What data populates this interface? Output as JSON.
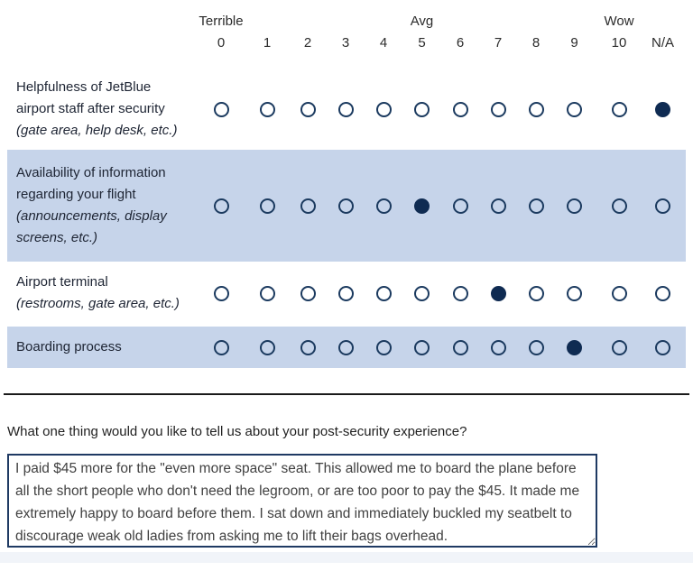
{
  "colors": {
    "accent": "#1b3a5f",
    "radio_fill": "#0f2b52",
    "row_highlight": "#c6d4ea",
    "text": "#1d2433",
    "divider": "#1a1a1a",
    "textarea_border": "#1f3a63",
    "textarea_text": "#414141",
    "next_section": "#f1f4f9"
  },
  "matrix": {
    "anchors": [
      {
        "option": "0",
        "label": "Terrible"
      },
      {
        "option": "5",
        "label": "Avg"
      },
      {
        "option": "10",
        "label": "Wow"
      }
    ],
    "options": [
      "0",
      "1",
      "2",
      "3",
      "4",
      "5",
      "6",
      "7",
      "8",
      "9",
      "10",
      "N/A"
    ],
    "rows": [
      {
        "label": "Helpfulness of JetBlue airport staff after security",
        "sublabel": "(gate area, help desk, etc.)",
        "selected": "N/A",
        "highlighted": false
      },
      {
        "label": "Availability of information regarding your flight",
        "sublabel": "(announcements, display screens, etc.)",
        "selected": "5",
        "highlighted": true
      },
      {
        "label": "Airport terminal",
        "sublabel": "(restrooms, gate area, etc.)",
        "selected": "7",
        "highlighted": false
      },
      {
        "label": "Boarding process",
        "sublabel": "",
        "selected": "9",
        "highlighted": true
      }
    ]
  },
  "open_question": {
    "label": "What one thing would you like to tell us about your post-security experience?",
    "value": "I paid $45 more for the \"even more space\" seat. This allowed me to board the plane before all the short people who don't need the legroom, or are too poor to pay the $45. It made me extremely happy to board before them. I sat down and immediately buckled my seatbelt to discourage weak old ladies from asking me to lift their bags overhead."
  }
}
